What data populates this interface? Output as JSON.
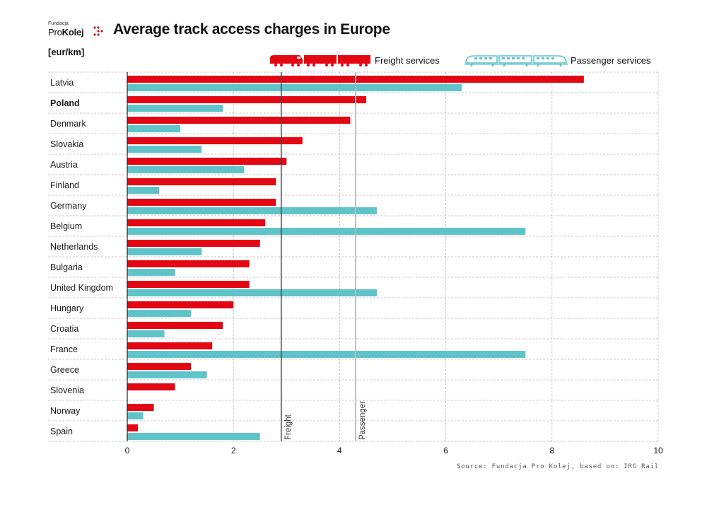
{
  "header": {
    "logo_small": "Fundacja",
    "logo_main_prefix": "Pro",
    "logo_main_bold": "Kolej",
    "title": "Average track access charges in Europe",
    "unit": "[eur/km]"
  },
  "legend": {
    "freight_label": "Freight services",
    "passenger_label": "Passenger services"
  },
  "source": "Source: Fundacja Pro Kolej, based on: IRG Rail",
  "colors": {
    "freight": "#e30613",
    "passenger": "#5fc4c9",
    "grid": "#bbbbbb",
    "freight_avg_line": "#444444",
    "passenger_avg_line": "#bbbbbb"
  },
  "chart_data": {
    "type": "bar",
    "orientation": "horizontal",
    "title": "Average track access charges in Europe",
    "ylabel": "[eur/km]",
    "xlim": [
      0,
      10
    ],
    "xticks": [
      0,
      2,
      4,
      6,
      8,
      10
    ],
    "categories": [
      "Latvia",
      "Poland",
      "Denmark",
      "Slovakia",
      "Austria",
      "Finland",
      "Germany",
      "Belgium",
      "Netherlands",
      "Bulgaria",
      "United Kingdom",
      "Hungary",
      "Croatia",
      "France",
      "Greece",
      "Slovenia",
      "Norway",
      "Spain"
    ],
    "highlight_category": "Poland",
    "series": [
      {
        "name": "Freight services",
        "values": [
          8.6,
          4.5,
          4.2,
          3.3,
          3.0,
          2.8,
          2.8,
          2.6,
          2.5,
          2.3,
          2.3,
          2.0,
          1.8,
          1.6,
          1.2,
          0.9,
          0.5,
          0.2
        ]
      },
      {
        "name": "Passenger services",
        "values": [
          6.3,
          1.8,
          1.0,
          1.4,
          2.2,
          0.6,
          4.7,
          7.5,
          1.4,
          0.9,
          4.7,
          1.2,
          0.7,
          7.5,
          1.5,
          0,
          0.3,
          2.5
        ]
      }
    ],
    "reference_lines": [
      {
        "label": "Freight",
        "value": 2.9
      },
      {
        "label": "Passenger",
        "value": 4.3
      }
    ],
    "grid": true,
    "legend_position": "top-right"
  }
}
